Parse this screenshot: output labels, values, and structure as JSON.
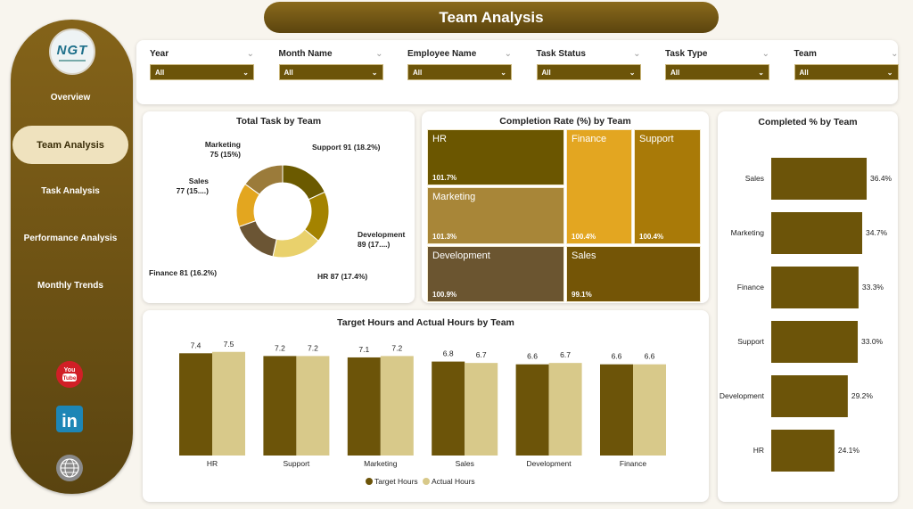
{
  "title": "Team Analysis",
  "logo": "NGT",
  "sidebar": {
    "items": [
      {
        "label": "Overview"
      },
      {
        "label": "Team Analysis",
        "selected": true
      },
      {
        "label": "Task Analysis"
      },
      {
        "label": "Performance Analysis"
      },
      {
        "label": "Monthly Trends"
      }
    ],
    "social": [
      "youtube-icon",
      "linkedin-icon",
      "globe-icon"
    ]
  },
  "filters": [
    {
      "label": "Year",
      "value": "All"
    },
    {
      "label": "Month Name",
      "value": "All"
    },
    {
      "label": "Employee Name",
      "value": "All"
    },
    {
      "label": "Task Status",
      "value": "All"
    },
    {
      "label": "Task Type",
      "value": "All"
    },
    {
      "label": "Team",
      "value": "All"
    }
  ],
  "colors": {
    "primary": "#6c5409",
    "accent": "#efe2be",
    "light": "#d8c98a"
  },
  "chart_data": [
    {
      "type": "pie",
      "title": "Total Task by Team",
      "slices": [
        {
          "label": "Support",
          "value": 91,
          "pct_label": "Support 91 (18.2%)",
          "color": "#6b5a00"
        },
        {
          "label": "Development",
          "value": 89,
          "pct_label": "Development",
          "pct_label2": "89 (17....)",
          "color": "#a48300"
        },
        {
          "label": "HR",
          "value": 87,
          "pct_label": "HR 87 (17.4%)",
          "color": "#e9d16c"
        },
        {
          "label": "Finance",
          "value": 81,
          "pct_label": "Finance 81 (16.2%)",
          "color": "#6b5534"
        },
        {
          "label": "Sales",
          "value": 77,
          "pct_label": "Sales",
          "pct_label2": "77 (15....)",
          "color": "#e3a61f"
        },
        {
          "label": "Marketing",
          "value": 75,
          "pct_label": "Marketing",
          "pct_label2": "75 (15%)",
          "color": "#9b7b3a"
        }
      ]
    },
    {
      "type": "heatmap",
      "subtype": "treemap",
      "title": "Completion Rate (%) by Team",
      "cells": [
        {
          "label": "HR",
          "value": "101.7%",
          "color": "#6b5600"
        },
        {
          "label": "Marketing",
          "value": "101.3%",
          "color": "#a88638"
        },
        {
          "label": "Finance",
          "value": "100.4%",
          "color": "#e3a621"
        },
        {
          "label": "Support",
          "value": "100.4%",
          "color": "#a97a08"
        },
        {
          "label": "Development",
          "value": "100.9%",
          "color": "#6b5530"
        },
        {
          "label": "Sales",
          "value": "99.1%",
          "color": "#745506"
        }
      ]
    },
    {
      "type": "bar",
      "orientation": "horizontal",
      "title": "Completed % by Team",
      "categories": [
        "Sales",
        "Marketing",
        "Finance",
        "Support",
        "Development",
        "HR"
      ],
      "values": [
        36.4,
        34.7,
        33.3,
        33.0,
        29.2,
        24.1
      ],
      "labels": [
        "36.4%",
        "34.7%",
        "33.3%",
        "33.0%",
        "29.2%",
        "24.1%"
      ],
      "color": "#6c5409"
    },
    {
      "type": "bar",
      "title": "Target Hours and Actual Hours by Team",
      "categories": [
        "HR",
        "Support",
        "Marketing",
        "Sales",
        "Development",
        "Finance"
      ],
      "series": [
        {
          "name": "Target Hours",
          "values": [
            7.4,
            7.2,
            7.1,
            6.8,
            6.6,
            6.6
          ],
          "color": "#6c5409"
        },
        {
          "name": "Actual Hours",
          "values": [
            7.5,
            7.2,
            7.2,
            6.7,
            6.7,
            6.6
          ],
          "color": "#d8c98a"
        }
      ],
      "legend": "bottom",
      "ylim": [
        0,
        8
      ]
    }
  ]
}
